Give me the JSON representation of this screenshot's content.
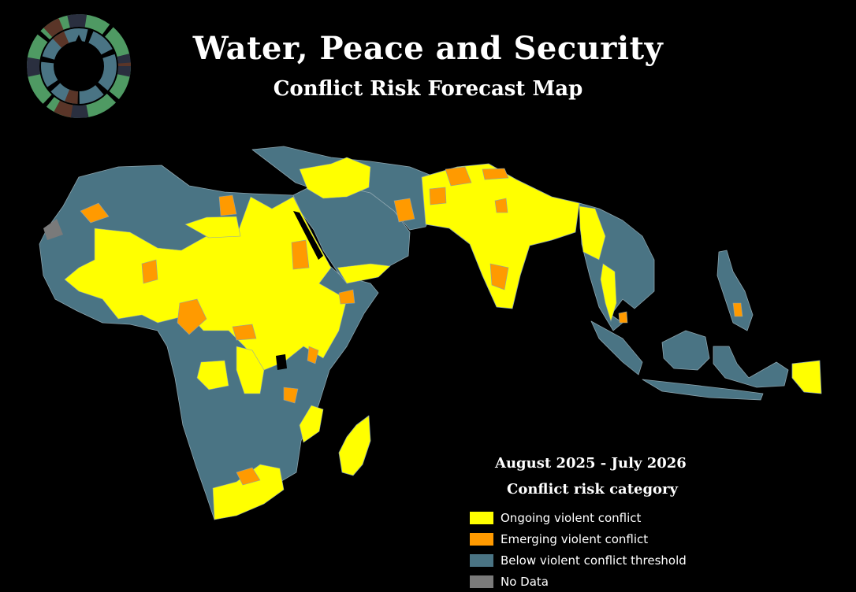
{
  "header": {
    "title": "Water, Peace and Security",
    "subtitle": "Conflict Risk Forecast Map"
  },
  "legend": {
    "period": "August 2025 - July 2026",
    "title": "Conflict risk category",
    "items": [
      {
        "label": "Ongoing violent conflict",
        "color": "#ffff00"
      },
      {
        "label": "Emerging violent conflict",
        "color": "#ff9a00"
      },
      {
        "label": "Below violent conflict threshold",
        "color": "#4a7484"
      },
      {
        "label": "No Data",
        "color": "#7a7a7a"
      }
    ]
  },
  "colors": {
    "background": "#000000",
    "ongoing": "#ffff00",
    "emerging": "#ff9a00",
    "below": "#4a7484",
    "border": "#8aa3ad"
  },
  "logo": {
    "icon": "wps-water-drop-logo-icon"
  }
}
